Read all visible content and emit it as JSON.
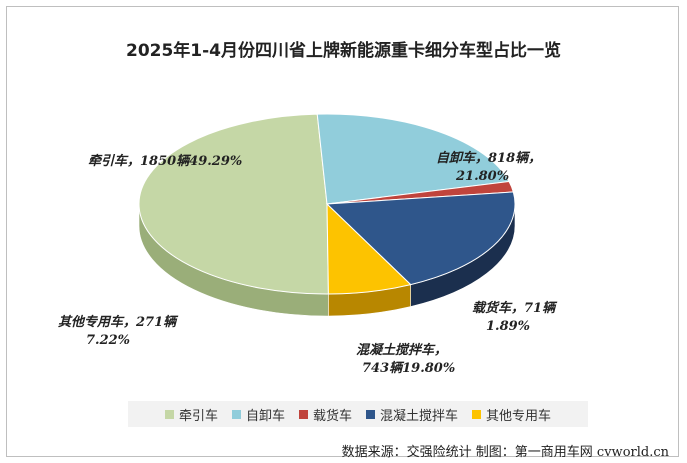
{
  "title": "2025年1-4月份四川省上牌新能源重卡细分车型占比一览",
  "source": "数据来源：交强险统计  制图：第一商用车网 cvworld.cn",
  "chart_data": {
    "type": "pie",
    "title": "2025年1-4月份四川省上牌新能源重卡细分车型占比一览",
    "categories": [
      "牵引车",
      "自卸车",
      "载货车",
      "混凝土搅拌车",
      "其他专用车"
    ],
    "values": [
      1850,
      818,
      71,
      743,
      271
    ],
    "units": [
      "辆",
      "辆",
      "辆",
      "辆",
      "辆"
    ],
    "percentages": [
      "49.29%",
      "21.80%",
      "1.89%",
      "19.80%",
      "7.22%"
    ],
    "colors": [
      "#c5d7a6",
      "#91cddb",
      "#c0443c",
      "#2f568b",
      "#fdc300"
    ],
    "side_colors": [
      "#9aae79",
      "#4f8f9e",
      "#7a1f1a",
      "#1b2f4e",
      "#b88700"
    ],
    "data_labels": [
      {
        "lines": [
          "牵引车，1850辆49.29%"
        ]
      },
      {
        "lines": [
          "自卸车，818辆，",
          "21.80%"
        ]
      },
      {
        "lines": [
          "载货车，71辆",
          "1.89%"
        ]
      },
      {
        "lines": [
          "混凝土搅拌车，",
          "743辆19.80%"
        ]
      },
      {
        "lines": [
          "其他专用车，271辆",
          "7.22%"
        ]
      }
    ],
    "legend": {
      "position": "bottom"
    },
    "style": "3d-pie"
  }
}
